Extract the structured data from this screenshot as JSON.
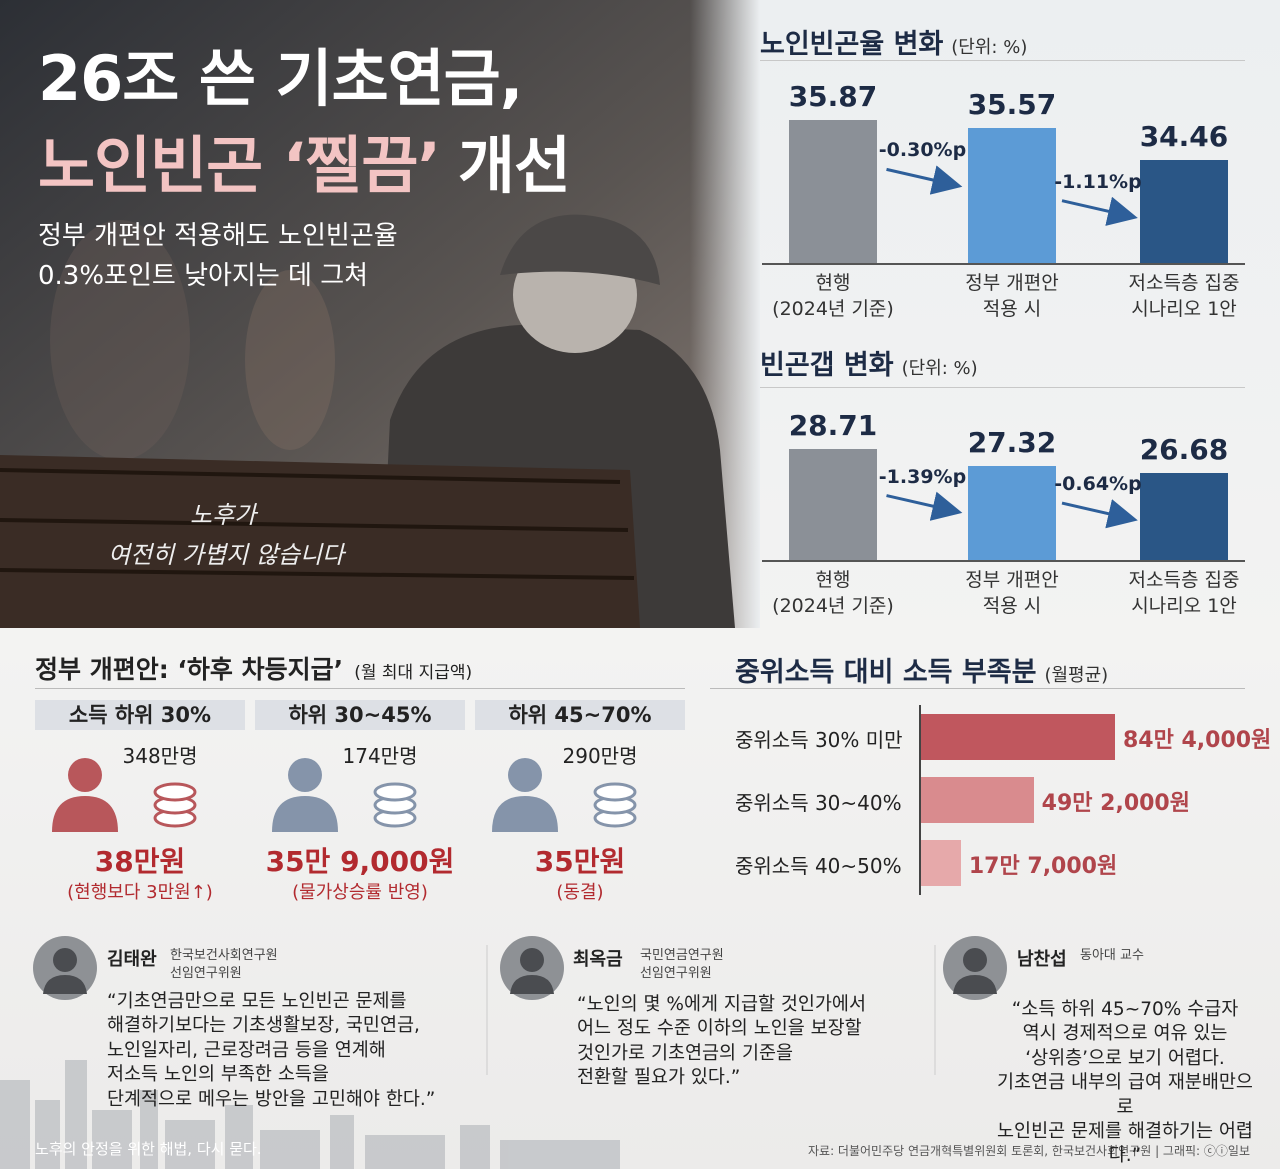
{
  "header": {
    "title": [
      "26조 쓴 기초연금,",
      "노인빈곤 ‘찔끔’",
      "개선"
    ],
    "subtitle": [
      "정부 개편안 적용해도 노인빈곤율",
      "0.3%포인트 낮아지는 데 그쳐"
    ],
    "caption": [
      "노후가",
      "여전히 가볍지 않습니다"
    ]
  },
  "chart_data": [
    {
      "type": "bar",
      "title": "노인빈곤율 변화",
      "unit": "(단위: %)",
      "categories": [
        "현행\n(2024년 기준)",
        "정부 개편안\n적용 시",
        "저소득층 집중\n시나리오 1안"
      ],
      "values": [
        35.87,
        35.57,
        34.46
      ],
      "colors": [
        "#8b9097",
        "#5c9bd6",
        "#2a5686"
      ],
      "changes": [
        "-0.30%p",
        "-1.11%p"
      ],
      "ylim": [
        30.8,
        37
      ]
    },
    {
      "type": "bar",
      "title": "빈곤갭 변화",
      "unit": "(단위: %)",
      "categories": [
        "현행\n(2024년 기준)",
        "정부 개편안\n적용 시",
        "저소득층 집중\n시나리오 1안"
      ],
      "values": [
        28.71,
        27.32,
        26.68
      ],
      "colors": [
        "#8b9097",
        "#5c9bd6",
        "#2a5686"
      ],
      "changes": [
        "-1.39%p",
        "-0.64%p"
      ],
      "ylim": [
        19.3,
        30
      ]
    },
    {
      "type": "barh",
      "title": "중위소득 대비 소득 부족분",
      "unit": "(월평균)",
      "categories": [
        "중위소득 30% 미만",
        "중위소득 30~40%",
        "중위소득 40~50%"
      ],
      "values": [
        844000,
        492000,
        177000
      ],
      "value_labels": [
        "84만 4,000원",
        "49만 2,000원",
        "17만 7,000원"
      ],
      "colors": [
        "#c0575e",
        "#d98b8e",
        "#e6a9aa"
      ],
      "xlim": [
        0,
        1000000
      ]
    }
  ],
  "tiers": {
    "title": "정부 개편안: ‘하후 차등지급’",
    "unit": "(월 최대 지급액)",
    "groups": [
      {
        "label": "소득 하위 30%",
        "people": "348만명",
        "amount": "38만원",
        "note": "(현행보다 3만원↑)"
      },
      {
        "label": "하위 30~45%",
        "people": "174만명",
        "amount": "35만 9,000원",
        "note": "(물가상승률 반영)"
      },
      {
        "label": "하위 45~70%",
        "people": "290만명",
        "amount": "35만원",
        "note": "(동결)"
      }
    ]
  },
  "experts": [
    {
      "name": "김태완",
      "affiliation": "한국보건사회연구원\n선임연구위원",
      "quote": "“기초연금만으로 모든 노인빈곤 문제를\n해결하기보다는 기초생활보장, 국민연금,\n노인일자리, 근로장려금 등을 연계해\n저소득 노인의 부족한 소득을\n단계적으로 메우는 방안을 고민해야 한다.”"
    },
    {
      "name": "최옥금",
      "affiliation": "국민연금연구원\n선임연구위원",
      "quote": "“노인의 몇 %에게 지급할 것인가에서\n어느 정도 수준 이하의 노인을 보장할\n것인가로 기초연금의 기준을\n전환할 필요가 있다.”"
    },
    {
      "name": "남찬섭",
      "affiliation": "동아대 교수",
      "quote": "“소득 하위 45~70% 수급자\n역시 경제적으로 여유 있는\n‘상위층’으로 보기 어렵다.\n기초연금 내부의 급여 재분배만으로\n노인빈곤 문제를 해결하기는 어렵다.”"
    }
  ],
  "footer": {
    "tagline": "노후의 안정을 위한 해법, 다시 묻다.",
    "source": "자료: 더불어민주당 연금개혁특별위원회 토론회, 한국보건사회연구원  |  그래픽: ⓒⓘ일보"
  }
}
